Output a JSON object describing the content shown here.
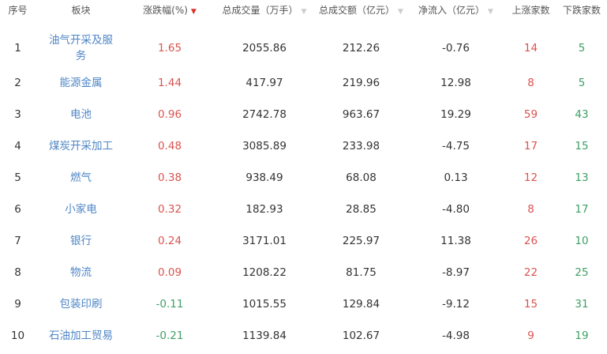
{
  "headers": [
    {
      "label": "序号",
      "sort": null
    },
    {
      "label": "板块",
      "sort": null
    },
    {
      "label": "涨跌幅(%)",
      "sort": "active"
    },
    {
      "label": "总成交量（万手）",
      "sort": "inactive"
    },
    {
      "label": "总成交额（亿元）",
      "sort": "inactive"
    },
    {
      "label": "净流入（亿元）",
      "sort": "inactive"
    },
    {
      "label": "上涨家数",
      "sort": null
    },
    {
      "label": "下跌家数",
      "sort": null
    }
  ],
  "sort_icon": "▼",
  "colors": {
    "up": "#d9534f",
    "down": "#3e9f66",
    "link": "#4f86c6"
  },
  "rows": [
    {
      "rank": "1",
      "name": "油气开采及服务",
      "change": "1.65",
      "volume": "2055.86",
      "amount": "212.26",
      "inflow": "-0.76",
      "up": "14",
      "down": "5"
    },
    {
      "rank": "2",
      "name": "能源金属",
      "change": "1.44",
      "volume": "417.97",
      "amount": "219.96",
      "inflow": "12.98",
      "up": "8",
      "down": "5"
    },
    {
      "rank": "3",
      "name": "电池",
      "change": "0.96",
      "volume": "2742.78",
      "amount": "963.67",
      "inflow": "19.29",
      "up": "59",
      "down": "43"
    },
    {
      "rank": "4",
      "name": "煤炭开采加工",
      "change": "0.48",
      "volume": "3085.89",
      "amount": "233.98",
      "inflow": "-4.75",
      "up": "17",
      "down": "15"
    },
    {
      "rank": "5",
      "name": "燃气",
      "change": "0.38",
      "volume": "938.49",
      "amount": "68.08",
      "inflow": "0.13",
      "up": "12",
      "down": "13"
    },
    {
      "rank": "6",
      "name": "小家电",
      "change": "0.32",
      "volume": "182.93",
      "amount": "28.85",
      "inflow": "-4.80",
      "up": "8",
      "down": "17"
    },
    {
      "rank": "7",
      "name": "银行",
      "change": "0.24",
      "volume": "3171.01",
      "amount": "225.97",
      "inflow": "11.38",
      "up": "26",
      "down": "10"
    },
    {
      "rank": "8",
      "name": "物流",
      "change": "0.09",
      "volume": "1208.22",
      "amount": "81.75",
      "inflow": "-8.97",
      "up": "22",
      "down": "25"
    },
    {
      "rank": "9",
      "name": "包装印刷",
      "change": "-0.11",
      "volume": "1015.55",
      "amount": "129.84",
      "inflow": "-9.12",
      "up": "15",
      "down": "31"
    },
    {
      "rank": "10",
      "name": "石油加工贸易",
      "change": "-0.21",
      "volume": "1139.84",
      "amount": "102.67",
      "inflow": "-4.98",
      "up": "9",
      "down": "19"
    }
  ]
}
